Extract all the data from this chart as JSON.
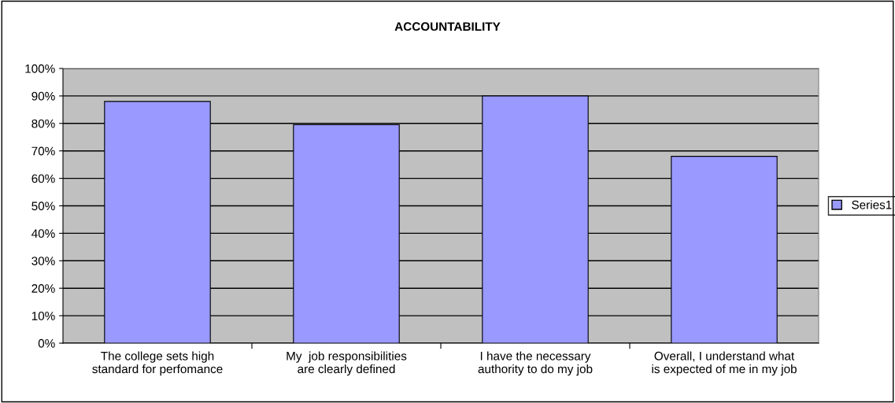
{
  "chart_data": {
    "type": "bar",
    "title": "ACCOUNTABILITY",
    "categories": [
      "The college sets high standard for perfomance",
      "My  job responsibilities are clearly defined",
      "I have the necessary authority to do my job",
      "Overall, I understand what is expected of me in my job"
    ],
    "series": [
      {
        "name": "Series1",
        "color": "#9999ff",
        "values": [
          0.88,
          0.795,
          0.9,
          0.68
        ]
      }
    ],
    "ylim": [
      0,
      1
    ],
    "yticks": [
      {
        "value": 0,
        "label": "0%"
      },
      {
        "value": 0.1,
        "label": "10%"
      },
      {
        "value": 0.2,
        "label": "20%"
      },
      {
        "value": 0.3,
        "label": "30%"
      },
      {
        "value": 0.4,
        "label": "40%"
      },
      {
        "value": 0.5,
        "label": "50%"
      },
      {
        "value": 0.6,
        "label": "60%"
      },
      {
        "value": 0.7,
        "label": "70%"
      },
      {
        "value": 0.8,
        "label": "80%"
      },
      {
        "value": 0.9,
        "label": "90%"
      },
      {
        "value": 1,
        "label": "100%"
      }
    ],
    "grid": "y",
    "legend": "right"
  }
}
